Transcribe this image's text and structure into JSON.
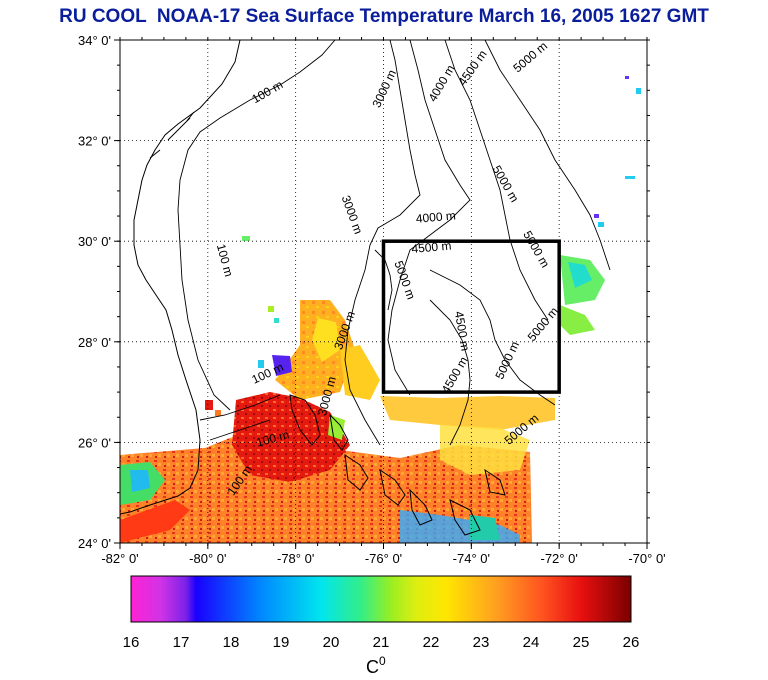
{
  "title": "RU COOL  NOAA-17 Sea Surface Temperature March 16, 2005 1627 GMT",
  "map": {
    "lon_range": [
      -82,
      -70
    ],
    "lat_range": [
      24,
      34
    ],
    "lon_ticks": [
      {
        "value": -82,
        "label": "-82° 0'"
      },
      {
        "value": -80,
        "label": "-80° 0'"
      },
      {
        "value": -78,
        "label": "-78° 0'"
      },
      {
        "value": -76,
        "label": "-76° 0'"
      },
      {
        "value": -74,
        "label": "-74° 0'"
      },
      {
        "value": -72,
        "label": "-72° 0'"
      },
      {
        "value": -70,
        "label": "-70° 0'"
      }
    ],
    "lat_ticks": [
      {
        "value": 34,
        "label": "34° 0'"
      },
      {
        "value": 32,
        "label": "32° 0'"
      },
      {
        "value": 30,
        "label": "30° 0'"
      },
      {
        "value": 28,
        "label": "28° 0'"
      },
      {
        "value": 26,
        "label": "26° 0'"
      },
      {
        "value": 24,
        "label": "24° 0'"
      }
    ],
    "grid": true,
    "box": {
      "lon_min": -76,
      "lon_max": -72,
      "lat_min": 27,
      "lat_max": 30
    },
    "contour_labels": [
      {
        "text": "100 m",
        "lon": -78.6,
        "lat": 32.9,
        "rot": -30
      },
      {
        "text": "3000 m",
        "lon": -75.9,
        "lat": 33.0,
        "rot": -65
      },
      {
        "text": "4000 m",
        "lon": -74.6,
        "lat": 33.1,
        "rot": -60
      },
      {
        "text": "4500 m",
        "lon": -73.9,
        "lat": 33.4,
        "rot": -55
      },
      {
        "text": "5000 m",
        "lon": -72.6,
        "lat": 33.6,
        "rot": -40
      },
      {
        "text": "5000 m",
        "lon": -73.3,
        "lat": 31.1,
        "rot": 60
      },
      {
        "text": "3000 m",
        "lon": -76.8,
        "lat": 30.5,
        "rot": 70
      },
      {
        "text": "4000 m",
        "lon": -74.8,
        "lat": 30.4,
        "rot": -5
      },
      {
        "text": "4500 m",
        "lon": -74.9,
        "lat": 29.8,
        "rot": -5
      },
      {
        "text": "5000 m",
        "lon": -72.6,
        "lat": 29.8,
        "rot": 60
      },
      {
        "text": "5000 m",
        "lon": -75.6,
        "lat": 29.2,
        "rot": 70
      },
      {
        "text": "100 m",
        "lon": -79.7,
        "lat": 29.6,
        "rot": 75
      },
      {
        "text": "4500 m",
        "lon": -74.3,
        "lat": 28.2,
        "rot": 80
      },
      {
        "text": "5000 m",
        "lon": -72.3,
        "lat": 28.3,
        "rot": -50
      },
      {
        "text": "5000 m",
        "lon": -73.1,
        "lat": 27.6,
        "rot": -65
      },
      {
        "text": "4500 m",
        "lon": -74.3,
        "lat": 27.3,
        "rot": -60
      },
      {
        "text": "3000 m",
        "lon": -76.8,
        "lat": 28.2,
        "rot": -70
      },
      {
        "text": "100 m",
        "lon": -78.6,
        "lat": 27.3,
        "rot": -25
      },
      {
        "text": "5000 m",
        "lon": -72.8,
        "lat": 26.2,
        "rot": -40
      },
      {
        "text": "3000 m",
        "lon": -77.2,
        "lat": 26.9,
        "rot": -75
      },
      {
        "text": "100 m",
        "lon": -78.5,
        "lat": 26.0,
        "rot": -15
      },
      {
        "text": "100 m",
        "lon": -79.2,
        "lat": 25.2,
        "rot": -55
      }
    ]
  },
  "colorbar": {
    "min": 16,
    "max": 26,
    "ticks": [
      "16",
      "17",
      "18",
      "19",
      "20",
      "21",
      "22",
      "23",
      "24",
      "25",
      "26"
    ],
    "unit_label": "C",
    "unit_superscript": "0",
    "stops": [
      {
        "value": 16.0,
        "color": "#ff22d4"
      },
      {
        "value": 16.6,
        "color": "#d033e6"
      },
      {
        "value": 17.1,
        "color": "#7a22e8"
      },
      {
        "value": 17.3,
        "color": "#1a00ff"
      },
      {
        "value": 18.6,
        "color": "#0088ff"
      },
      {
        "value": 19.8,
        "color": "#00e5ee"
      },
      {
        "value": 20.6,
        "color": "#33ee88"
      },
      {
        "value": 21.2,
        "color": "#99ee22"
      },
      {
        "value": 21.7,
        "color": "#ddee11"
      },
      {
        "value": 22.3,
        "color": "#ffe600"
      },
      {
        "value": 23.3,
        "color": "#ffa020"
      },
      {
        "value": 24.2,
        "color": "#ff5520"
      },
      {
        "value": 25.0,
        "color": "#e81010"
      },
      {
        "value": 26.0,
        "color": "#7a0000"
      }
    ]
  }
}
